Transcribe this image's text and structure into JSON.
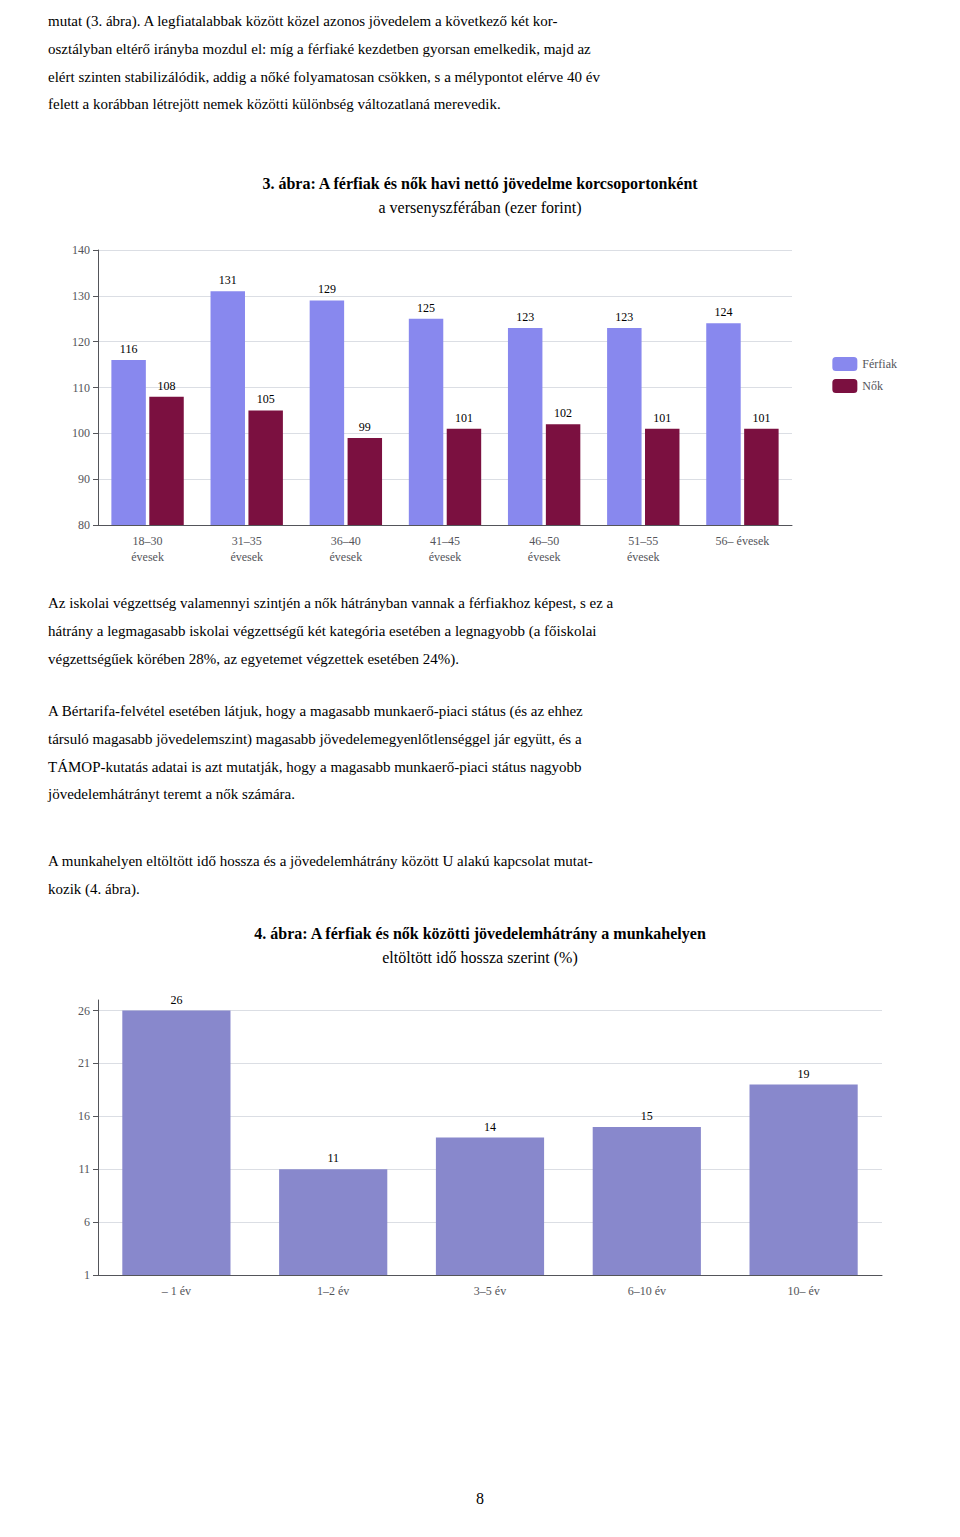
{
  "chart_data": [
    {
      "type": "bar",
      "title": "3. ábra: A férfiak és nők havi nettó jövedelme korcsoportonként",
      "subtitle": "a versenyszférában (ezer forint)",
      "categories": [
        "18–30\névesek",
        "31–35\névesek",
        "36–40\névesek",
        "41–45\névesek",
        "46–50\névesek",
        "51–55\névesek",
        "56– évesek"
      ],
      "series": [
        {
          "name": "Férfiak",
          "color": "#8888ee",
          "values": [
            116,
            131,
            129,
            125,
            123,
            123,
            124
          ]
        },
        {
          "name": "Nők",
          "color": "#7b1040",
          "values": [
            108,
            105,
            99,
            101,
            102,
            101,
            101
          ]
        }
      ],
      "ylim": [
        80,
        140
      ],
      "yticks": [
        80,
        90,
        100,
        110,
        120,
        130,
        140
      ],
      "grid": true,
      "legend": "right",
      "data_labels": true,
      "annotations": [
        "mutat (3. ábra). A legfiatalabbak között közel azonos jövedelem a következő két kor-\nosztályban eltérő irányba mozdul el: míg a férfiaké kezdetben gyorsan emelkedik, majd az\nelért szinten stabilizálódik, addig a nőké folyamatosan csökken, s a mélypontot elérve 40 év\nfelett a korábban létrejött nemek közötti különbség változatlaná merevedik."
      ]
    },
    {
      "type": "bar",
      "title": "4. ábra: A férfiak és nők közötti jövedelemhátrány a munkahelyen",
      "subtitle": "eltöltött idő hossza szerint (%)",
      "categories": [
        "– 1 év",
        "1–2 év",
        "3–5 év",
        "6–10 év",
        "10– év"
      ],
      "values": [
        26,
        11,
        14,
        15,
        19
      ],
      "color": "#8888cc",
      "ylim": [
        1,
        27
      ],
      "yticks": [
        1,
        6,
        11,
        16,
        21,
        26
      ],
      "grid": true,
      "data_labels": true,
      "annotations": [
        "Az iskolai végzettség valamennyi szintjén a nők hátrányban vannak a férfiakhoz képest, s ez a\nhátrány a legmagasabb iskolai végzettségű két kategória esetében a legnagyobb (a főiskolai\nvégzettségűek körében 28%, az egyetemet végzettek esetében 24%).",
        "A Bértarifa-felvétel esetében látjuk, hogy a magasabb munkaerő-piaci státus (és az ehhez\ntársuló magasabb jövedelemszint) magasabb jövedelemegyenlőtlenséggel jár együtt, és a\nTÁMOP-kutatás adatai is azt mutatják, hogy a magasabb munkaerő-piaci státus nagyobb\njövedelemhátrányt teremt a nők számára.",
        "A munkahelyen eltöltött idő hossza és a jövedelemhátrány között U alakú kapcsolat mutat-\nkozik (4. ábra).",
        "8"
      ]
    }
  ]
}
